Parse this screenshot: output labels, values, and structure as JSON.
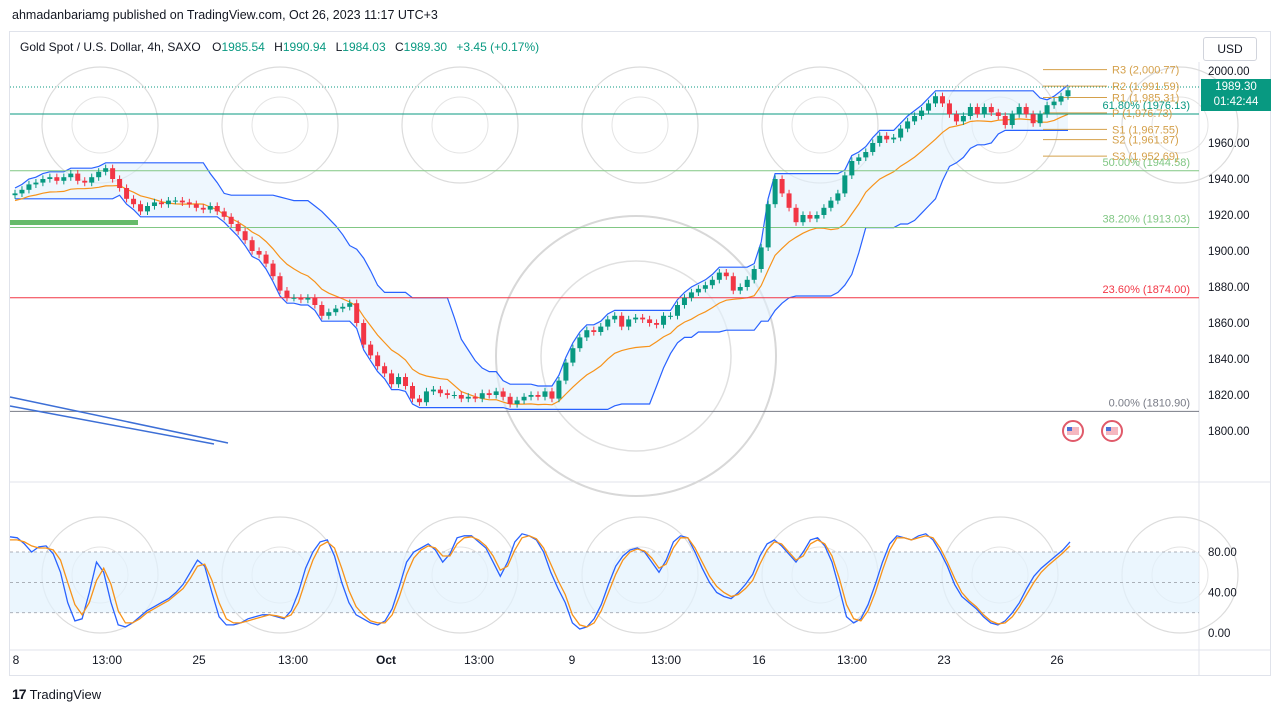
{
  "header": {
    "publish_note": "ahmadanbariamg published on TradingView.com, Oct 26, 2023 11:17 UTC+3"
  },
  "legend": {
    "symbol": "Gold Spot / U.S. Dollar, 4h, SAXO",
    "open_key": "O",
    "open": "1985.54",
    "high_key": "H",
    "high": "1990.94",
    "low_key": "L",
    "low": "1984.03",
    "close_key": "C",
    "close": "1989.30",
    "change": "+3.45 (+0.17%)"
  },
  "currency_button": "USD",
  "last_price": {
    "price": "1989.30",
    "countdown": "01:42:44"
  },
  "footer": {
    "logo": "17",
    "brand": "TradingView"
  },
  "colors": {
    "up": "#089981",
    "down": "#f23645",
    "channel": "#2962ff",
    "orange": "#f7931a",
    "fill": "#e3f2fd",
    "fib_green": "#81c784",
    "fib_red": "#f23645",
    "pivot": "#d4a04a"
  },
  "chart_data": [
    {
      "type": "candlestick",
      "title": "Gold Spot / U.S. Dollar, 4h, SAXO",
      "ylim": [
        1790,
        2010
      ],
      "y_ticks": [
        "2000.00",
        "1980.00",
        "1960.00",
        "1940.00",
        "1920.00",
        "1900.00",
        "1880.00",
        "1860.00",
        "1840.00",
        "1820.00",
        "1800.00"
      ],
      "x_ticks": [
        "8",
        "13:00",
        "25",
        "13:00",
        "Oct",
        "13:00",
        "9",
        "13:00",
        "16",
        "13:00",
        "23",
        "26"
      ],
      "fib_levels": [
        {
          "label": "61.80% (1976.13)",
          "value": 1976.13,
          "color": "#089981"
        },
        {
          "label": "50.00% (1944.58)",
          "value": 1944.58,
          "color": "#81c784"
        },
        {
          "label": "38.20% (1913.03)",
          "value": 1913.03,
          "color": "#81c784"
        },
        {
          "label": "23.60% (1874.00)",
          "value": 1874.0,
          "color": "#f23645"
        },
        {
          "label": "0.00% (1810.90)",
          "value": 1810.9,
          "color": "#787b86"
        }
      ],
      "pivots": [
        {
          "label": "R3 (2,000.77)",
          "value": 2000.77
        },
        {
          "label": "R2 (1,991.59)",
          "value": 1991.59
        },
        {
          "label": "R1 (1,985.31)",
          "value": 1985.31
        },
        {
          "label": "P (1,976.73)",
          "value": 1976.73
        },
        {
          "label": "S1 (1,967.55)",
          "value": 1967.55
        },
        {
          "label": "S2 (1,961.87)",
          "value": 1961.87
        },
        {
          "label": "S3 (1,952.69)",
          "value": 1952.69
        }
      ],
      "closes": [
        1932,
        1934,
        1937,
        1938,
        1940,
        1941,
        1939,
        1941,
        1943,
        1939,
        1938,
        1941,
        1944,
        1946,
        1940,
        1935,
        1929,
        1926,
        1922,
        1925,
        1927,
        1926,
        1928,
        1928,
        1927,
        1926,
        1924,
        1923,
        1925,
        1922,
        1919,
        1915,
        1911,
        1906,
        1900,
        1898,
        1893,
        1886,
        1878,
        1874,
        1874,
        1873,
        1874,
        1870,
        1864,
        1866,
        1868,
        1869,
        1871,
        1860,
        1848,
        1842,
        1836,
        1832,
        1826,
        1830,
        1825,
        1818,
        1816,
        1822,
        1823,
        1821,
        1820,
        1820,
        1818,
        1819,
        1818,
        1821,
        1820,
        1822,
        1819,
        1815,
        1817,
        1819,
        1820,
        1819,
        1822,
        1818,
        1828,
        1838,
        1846,
        1852,
        1856,
        1855,
        1858,
        1862,
        1864,
        1858,
        1862,
        1863,
        1862,
        1860,
        1859,
        1864,
        1864,
        1870,
        1874,
        1877,
        1879,
        1881,
        1884,
        1888,
        1886,
        1878,
        1880,
        1884,
        1890,
        1902,
        1926,
        1940,
        1932,
        1924,
        1916,
        1920,
        1918,
        1920,
        1924,
        1928,
        1932,
        1942,
        1950,
        1952,
        1955,
        1960,
        1964,
        1962,
        1963,
        1968,
        1972,
        1975,
        1978,
        1982,
        1986,
        1982,
        1976,
        1972,
        1975,
        1980,
        1976,
        1980,
        1977,
        1975,
        1970,
        1976,
        1980,
        1976,
        1971,
        1976,
        1981,
        1983,
        1986,
        1989.3
      ],
      "annotations": {
        "channel_upper_last": 2000.77,
        "stoch_bands": [
          "80.00",
          "40.00",
          "0.00"
        ]
      }
    },
    {
      "type": "line",
      "title": "",
      "ylim": [
        -8,
        104
      ],
      "y_ticks": [
        "80.00",
        "40.00",
        "0.00"
      ],
      "series": [
        {
          "values": [
            95,
            94,
            88,
            80,
            85,
            86,
            78,
            60,
            30,
            12,
            14,
            40,
            70,
            60,
            30,
            8,
            6,
            10,
            16,
            22,
            26,
            30,
            34,
            40,
            48,
            60,
            72,
            66,
            40,
            16,
            8,
            8,
            10,
            14,
            16,
            18,
            18,
            16,
            14,
            22,
            40,
            64,
            80,
            90,
            92,
            76,
            50,
            30,
            18,
            14,
            10,
            8,
            12,
            24,
            46,
            70,
            80,
            84,
            88,
            82,
            70,
            78,
            94,
            96,
            96,
            90,
            84,
            70,
            56,
            70,
            90,
            98,
            96,
            92,
            80,
            60,
            44,
            30,
            10,
            4,
            6,
            14,
            28,
            48,
            66,
            76,
            82,
            84,
            80,
            70,
            60,
            72,
            90,
            96,
            94,
            80,
            64,
            50,
            40,
            36,
            34,
            40,
            48,
            58,
            76,
            88,
            92,
            86,
            78,
            70,
            80,
            92,
            94,
            86,
            70,
            44,
            16,
            10,
            14,
            28,
            48,
            70,
            88,
            96,
            94,
            92,
            96,
            98,
            92,
            80,
            66,
            48,
            36,
            30,
            24,
            16,
            10,
            8,
            12,
            20,
            30,
            44,
            56,
            64,
            70,
            76,
            82,
            90
          ]
        },
        {
          "values": [
            92,
            92,
            90,
            86,
            84,
            84,
            82,
            72,
            50,
            28,
            18,
            30,
            52,
            64,
            48,
            22,
            10,
            10,
            14,
            20,
            24,
            28,
            32,
            38,
            44,
            54,
            66,
            68,
            52,
            30,
            14,
            10,
            10,
            12,
            14,
            16,
            18,
            17,
            15,
            18,
            30,
            52,
            72,
            86,
            90,
            84,
            64,
            42,
            26,
            18,
            12,
            10,
            10,
            18,
            36,
            58,
            74,
            82,
            86,
            84,
            76,
            76,
            88,
            94,
            95,
            92,
            86,
            76,
            62,
            66,
            82,
            94,
            96,
            93,
            84,
            68,
            52,
            38,
            18,
            8,
            6,
            10,
            22,
            40,
            58,
            72,
            80,
            83,
            81,
            74,
            64,
            68,
            84,
            94,
            94,
            84,
            70,
            56,
            46,
            40,
            36,
            38,
            44,
            52,
            68,
            82,
            90,
            88,
            80,
            72,
            76,
            88,
            92,
            88,
            76,
            54,
            28,
            14,
            12,
            22,
            40,
            62,
            82,
            94,
            94,
            92,
            94,
            96,
            94,
            84,
            70,
            54,
            40,
            32,
            26,
            18,
            12,
            9,
            10,
            16,
            26,
            38,
            50,
            60,
            67,
            73,
            79,
            86
          ]
        }
      ]
    }
  ]
}
